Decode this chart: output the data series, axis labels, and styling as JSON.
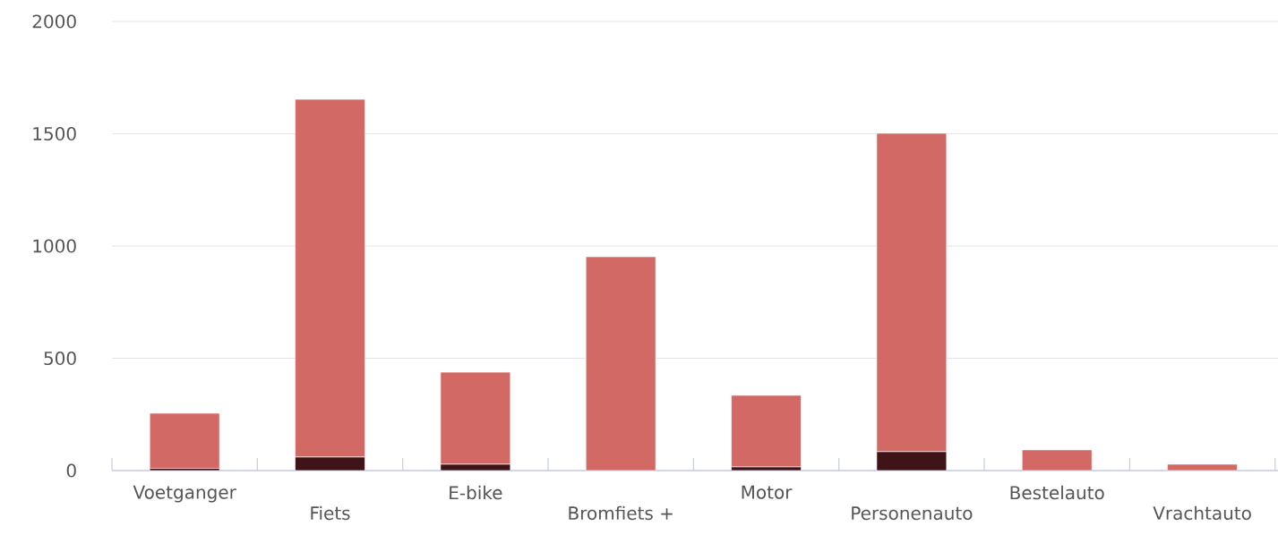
{
  "chart_data": {
    "type": "bar",
    "stacked": true,
    "categories": [
      "Voetganger",
      "Fiets",
      "E-bike",
      "Bromfiets +",
      "Motor",
      "Personenauto",
      "Bestelauto",
      "Vrachtauto"
    ],
    "series": [
      {
        "color": "#3f1418",
        "values": [
          10,
          60,
          28,
          0,
          16,
          84,
          0,
          0
        ]
      },
      {
        "color": "#d26964",
        "values": [
          245,
          1593,
          410,
          952,
          319,
          1418,
          92,
          28
        ]
      }
    ],
    "ylim": [
      0,
      2000
    ],
    "yticks": [
      0,
      500,
      1000,
      1500,
      2000
    ],
    "grid": "y"
  }
}
